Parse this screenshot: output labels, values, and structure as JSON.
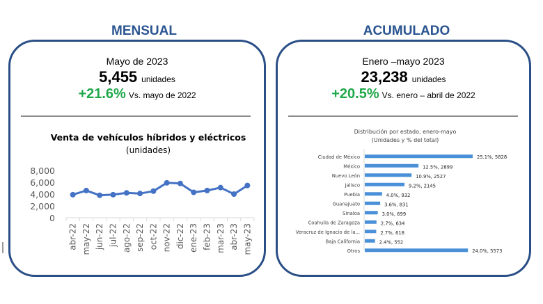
{
  "mensual": {
    "section_title": "MENSUAL",
    "period": "Mayo de 2023",
    "value": "5,455",
    "unit": "unidades",
    "change": "+21.6%",
    "comparison": "Vs. mayo de 2022"
  },
  "acumulado": {
    "section_title": "ACUMULADO",
    "period": "Enero –mayo 2023",
    "value": "23,238",
    "unit": "unidades",
    "change": "+20.5%",
    "comparison": "Vs. enero – abril de 2022"
  },
  "colors": {
    "title_blue": "#2b5591",
    "border_blue": "#2a4f86",
    "line_blue": "#4472c4",
    "bar_blue": "#4a90d9",
    "positive_green": "#1fa84a"
  },
  "chart_data": [
    {
      "type": "line",
      "title": "Venta de vehículos híbridos y eléctricos",
      "subtitle": "(unidades)",
      "xlabel": "",
      "ylabel": "",
      "categories": [
        "abr-22",
        "may-22",
        "jun-22",
        "jul-22",
        "ago-22",
        "sep-22",
        "oct-22",
        "nov-22",
        "dic-22",
        "ene-23",
        "feb-23",
        "mar-23",
        "abr-23",
        "may-23"
      ],
      "series": [
        {
          "name": "Unidades",
          "values": [
            3900,
            4600,
            3800,
            3900,
            4200,
            4100,
            4500,
            5900,
            5800,
            4300,
            4600,
            5100,
            4000,
            5455
          ]
        }
      ],
      "ylim": [
        0,
        8000
      ],
      "yticks": [
        0,
        2000,
        4000,
        6000,
        8000
      ],
      "ytick_labels": [
        "0",
        "2,000",
        "4,000",
        "6,000",
        "8,000"
      ],
      "grid": false,
      "legend": "none"
    },
    {
      "type": "bar",
      "orientation": "horizontal",
      "title": "Distribución por estado, enero-mayo",
      "subtitle": "(Unidades y % del total)",
      "categories": [
        "Ciudad de México",
        "México",
        "Nuevo León",
        "Jalisco",
        "Puebla",
        "Guanajuato",
        "Sinaloa",
        "Coahuila de Zaragoza",
        "Veracruz de Ignacio de la...",
        "Baja California",
        "Otros"
      ],
      "values": [
        5828,
        2899,
        2527,
        2145,
        932,
        831,
        699,
        634,
        618,
        552,
        5573
      ],
      "percentages": [
        25.1,
        12.5,
        10.9,
        9.2,
        4.0,
        3.6,
        3.0,
        2.7,
        2.7,
        2.4,
        24.0
      ],
      "data_labels": [
        "25.1%, 5828",
        "12.5%, 2899",
        "10.9%, 2527",
        "9.2%, 2145",
        "4.0%, 932",
        "3.6%, 831",
        "3.0%, 699",
        "2.7%, 634",
        "2.7%, 618",
        "2.4%, 552",
        "24.0%, 5573"
      ],
      "xlim": [
        0,
        5828
      ],
      "grid": false,
      "legend": "none"
    }
  ]
}
